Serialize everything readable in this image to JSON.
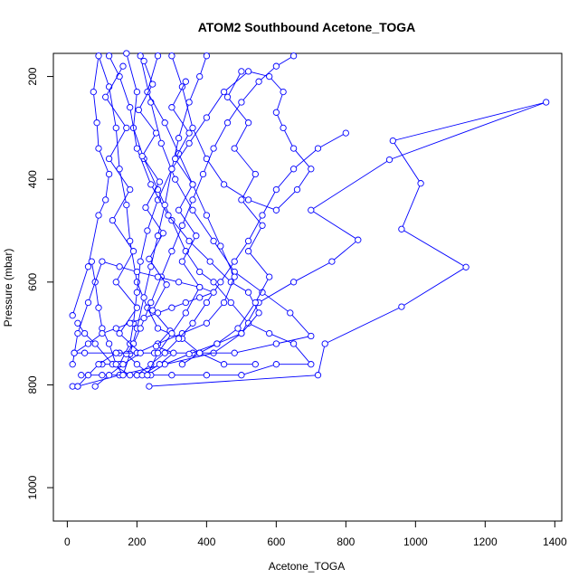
{
  "chart_data": {
    "type": "line",
    "title": "ATOM2 Southbound Acetone_TOGA",
    "xlabel": "Acetone_TOGA",
    "ylabel": "Pressure (mbar)",
    "xlim": [
      -40,
      1420
    ],
    "ylim": [
      1065,
      155
    ],
    "y_reversed": true,
    "grid": false,
    "legend": "none",
    "xticks": [
      0,
      200,
      400,
      600,
      800,
      1000,
      1200,
      1400
    ],
    "yticks": [
      200,
      400,
      600,
      800,
      1000
    ],
    "color": "#0000ff",
    "marker": "open-circle",
    "series": [
      {
        "points": [
          [
            235,
            803
          ],
          [
            720,
            781
          ],
          [
            740,
            720
          ],
          [
            960,
            648
          ],
          [
            1145,
            571
          ],
          [
            960,
            497
          ],
          [
            1015,
            408
          ],
          [
            935,
            325
          ],
          [
            1375,
            250
          ],
          [
            925,
            362
          ],
          [
            700,
            460
          ],
          [
            835,
            518
          ],
          [
            760,
            560
          ],
          [
            650,
            600
          ],
          [
            550,
            640
          ],
          [
            500,
            700
          ],
          [
            420,
            738
          ],
          [
            150,
            781
          ],
          [
            30,
            803
          ],
          [
            15,
            803
          ]
        ]
      },
      {
        "points": [
          [
            15,
            665
          ],
          [
            60,
            570
          ],
          [
            90,
            470
          ],
          [
            110,
            440
          ],
          [
            120,
            390
          ],
          [
            90,
            340
          ],
          [
            85,
            290
          ],
          [
            75,
            230
          ],
          [
            90,
            160
          ],
          [
            120,
            220
          ],
          [
            140,
            300
          ],
          [
            150,
            380
          ],
          [
            170,
            450
          ],
          [
            180,
            520
          ],
          [
            200,
            600
          ],
          [
            230,
            650
          ],
          [
            260,
            690
          ],
          [
            330,
            710
          ],
          [
            380,
            738
          ],
          [
            450,
            760
          ],
          [
            540,
            760
          ]
        ]
      },
      {
        "points": [
          [
            210,
            160
          ],
          [
            240,
            250
          ],
          [
            270,
            330
          ],
          [
            310,
            400
          ],
          [
            360,
            460
          ],
          [
            420,
            520
          ],
          [
            480,
            580
          ],
          [
            560,
            620
          ],
          [
            640,
            660
          ],
          [
            700,
            705
          ],
          [
            600,
            720
          ],
          [
            480,
            738
          ],
          [
            360,
            738
          ],
          [
            250,
            738
          ],
          [
            150,
            738
          ],
          [
            50,
            738
          ],
          [
            20,
            738
          ]
        ]
      },
      {
        "points": [
          [
            170,
            155
          ],
          [
            200,
            230
          ],
          [
            190,
            300
          ],
          [
            220,
            360
          ],
          [
            260,
            420
          ],
          [
            300,
            480
          ],
          [
            340,
            540
          ],
          [
            380,
            580
          ],
          [
            420,
            600
          ],
          [
            470,
            640
          ],
          [
            520,
            680
          ],
          [
            580,
            700
          ],
          [
            650,
            720
          ],
          [
            700,
            760
          ],
          [
            600,
            760
          ],
          [
            500,
            781
          ],
          [
            400,
            781
          ],
          [
            300,
            781
          ],
          [
            200,
            781
          ],
          [
            100,
            781
          ],
          [
            40,
            781
          ]
        ]
      },
      {
        "points": [
          [
            300,
            160
          ],
          [
            330,
            220
          ],
          [
            360,
            300
          ],
          [
            400,
            360
          ],
          [
            450,
            410
          ],
          [
            520,
            440
          ],
          [
            600,
            460
          ],
          [
            660,
            420
          ],
          [
            700,
            380
          ],
          [
            650,
            340
          ],
          [
            620,
            300
          ],
          [
            600,
            270
          ],
          [
            620,
            230
          ],
          [
            580,
            200
          ],
          [
            520,
            190
          ],
          [
            450,
            230
          ],
          [
            400,
            280
          ],
          [
            350,
            330
          ],
          [
            300,
            380
          ],
          [
            260,
            440
          ],
          [
            230,
            500
          ],
          [
            210,
            560
          ],
          [
            200,
            620
          ],
          [
            190,
            680
          ],
          [
            180,
            720
          ],
          [
            150,
            760
          ],
          [
            100,
            760
          ]
        ]
      },
      {
        "points": [
          [
            120,
            160
          ],
          [
            150,
            200
          ],
          [
            180,
            260
          ],
          [
            200,
            340
          ],
          [
            240,
            410
          ],
          [
            290,
            470
          ],
          [
            350,
            520
          ],
          [
            410,
            560
          ],
          [
            470,
            600
          ],
          [
            520,
            620
          ],
          [
            550,
            660
          ],
          [
            500,
            700
          ],
          [
            430,
            720
          ],
          [
            350,
            740
          ],
          [
            280,
            760
          ],
          [
            230,
            781
          ],
          [
            180,
            781
          ],
          [
            130,
            760
          ],
          [
            80,
            720
          ],
          [
            50,
            700
          ],
          [
            30,
            680
          ]
        ]
      },
      {
        "points": [
          [
            400,
            160
          ],
          [
            380,
            200
          ],
          [
            350,
            250
          ],
          [
            320,
            320
          ],
          [
            300,
            380
          ],
          [
            280,
            450
          ],
          [
            260,
            510
          ],
          [
            240,
            570
          ],
          [
            220,
            630
          ],
          [
            200,
            690
          ],
          [
            180,
            740
          ],
          [
            160,
            781
          ],
          [
            140,
            760
          ],
          [
            120,
            720
          ],
          [
            100,
            690
          ],
          [
            90,
            650
          ],
          [
            80,
            600
          ],
          [
            70,
            560
          ]
        ]
      },
      {
        "points": [
          [
            650,
            160
          ],
          [
            600,
            180
          ],
          [
            550,
            210
          ],
          [
            500,
            250
          ],
          [
            460,
            290
          ],
          [
            420,
            340
          ],
          [
            390,
            390
          ],
          [
            360,
            440
          ],
          [
            330,
            490
          ],
          [
            300,
            540
          ],
          [
            270,
            590
          ],
          [
            240,
            640
          ],
          [
            210,
            690
          ],
          [
            190,
            720
          ],
          [
            170,
            740
          ],
          [
            200,
            760
          ],
          [
            240,
            781
          ]
        ]
      },
      {
        "points": [
          [
            260,
            160
          ],
          [
            230,
            230
          ],
          [
            280,
            290
          ],
          [
            320,
            350
          ],
          [
            360,
            410
          ],
          [
            400,
            470
          ],
          [
            440,
            530
          ],
          [
            480,
            590
          ],
          [
            450,
            640
          ],
          [
            400,
            680
          ],
          [
            330,
            700
          ],
          [
            260,
            720
          ],
          [
            200,
            738
          ],
          [
            140,
            738
          ],
          [
            90,
            760
          ],
          [
            60,
            781
          ],
          [
            30,
            803
          ]
        ]
      },
      {
        "points": [
          [
            800,
            310
          ],
          [
            720,
            340
          ],
          [
            650,
            380
          ],
          [
            600,
            420
          ],
          [
            560,
            470
          ],
          [
            520,
            520
          ],
          [
            480,
            560
          ],
          [
            440,
            600
          ],
          [
            400,
            640
          ],
          [
            360,
            680
          ],
          [
            320,
            710
          ],
          [
            280,
            738
          ],
          [
            240,
            760
          ],
          [
            200,
            781
          ]
        ]
      },
      {
        "points": [
          [
            220,
            170
          ],
          [
            245,
            215
          ],
          [
            205,
            265
          ],
          [
            255,
            310
          ],
          [
            215,
            355
          ],
          [
            265,
            405
          ],
          [
            225,
            455
          ],
          [
            275,
            505
          ],
          [
            235,
            555
          ],
          [
            285,
            605
          ],
          [
            245,
            655
          ],
          [
            295,
            695
          ],
          [
            255,
            725
          ],
          [
            305,
            738
          ],
          [
            265,
            760
          ],
          [
            215,
            781
          ]
        ]
      },
      {
        "points": [
          [
            160,
            180
          ],
          [
            110,
            240
          ],
          [
            170,
            300
          ],
          [
            120,
            360
          ],
          [
            180,
            420
          ],
          [
            130,
            480
          ],
          [
            190,
            540
          ],
          [
            140,
            600
          ],
          [
            200,
            650
          ],
          [
            150,
            700
          ],
          [
            210,
            738
          ],
          [
            160,
            760
          ],
          [
            120,
            781
          ],
          [
            80,
            803
          ]
        ]
      },
      {
        "points": [
          [
            500,
            190
          ],
          [
            460,
            240
          ],
          [
            520,
            290
          ],
          [
            480,
            340
          ],
          [
            540,
            390
          ],
          [
            500,
            440
          ],
          [
            560,
            490
          ],
          [
            520,
            540
          ],
          [
            580,
            590
          ],
          [
            540,
            640
          ],
          [
            490,
            690
          ],
          [
            430,
            720
          ],
          [
            380,
            738
          ],
          [
            330,
            760
          ]
        ]
      },
      {
        "points": [
          [
            340,
            210
          ],
          [
            300,
            260
          ],
          [
            350,
            310
          ],
          [
            310,
            360
          ],
          [
            360,
            410
          ],
          [
            320,
            460
          ],
          [
            370,
            510
          ],
          [
            330,
            560
          ],
          [
            380,
            610
          ],
          [
            340,
            660
          ],
          [
            300,
            700
          ],
          [
            260,
            738
          ],
          [
            230,
            781
          ]
        ]
      },
      {
        "points": [
          [
            20,
            738
          ],
          [
            60,
            720
          ],
          [
            100,
            700
          ],
          [
            140,
            690
          ],
          [
            180,
            680
          ],
          [
            220,
            670
          ],
          [
            260,
            660
          ],
          [
            300,
            650
          ],
          [
            340,
            640
          ],
          [
            380,
            630
          ],
          [
            420,
            620
          ],
          [
            380,
            610
          ],
          [
            320,
            600
          ],
          [
            260,
            590
          ],
          [
            200,
            580
          ],
          [
            150,
            570
          ],
          [
            100,
            560
          ],
          [
            60,
            640
          ],
          [
            30,
            700
          ],
          [
            15,
            760
          ]
        ]
      }
    ]
  }
}
